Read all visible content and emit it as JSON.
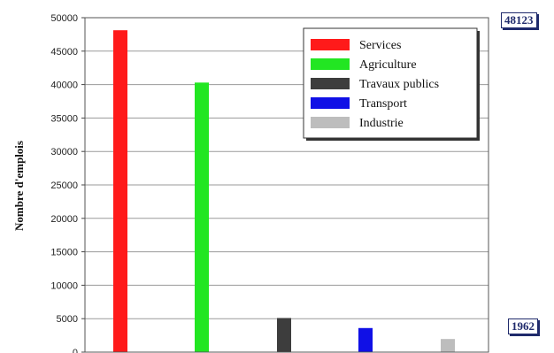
{
  "chart_data": {
    "type": "bar",
    "categories": [
      "Services",
      "Agriculture",
      "Travaux publics",
      "Transport",
      "Industrie"
    ],
    "values": [
      48123,
      40300,
      5100,
      3600,
      1962
    ],
    "colors": [
      "#ff1a1a",
      "#22e622",
      "#3d3d3d",
      "#1010e6",
      "#bdbdbd"
    ],
    "ylabel": "Nombre d'emplois",
    "xlabel": "",
    "ylim": [
      0,
      50000
    ],
    "yticks": [
      0,
      5000,
      10000,
      15000,
      20000,
      25000,
      30000,
      35000,
      40000,
      45000,
      50000
    ],
    "grid": true,
    "legend_position": "top-right",
    "legend": [
      "Services",
      "Agriculture",
      "Travaux publics",
      "Transport",
      "Industrie"
    ],
    "annotations": {
      "max_label": "48123",
      "min_label": "1962"
    }
  }
}
